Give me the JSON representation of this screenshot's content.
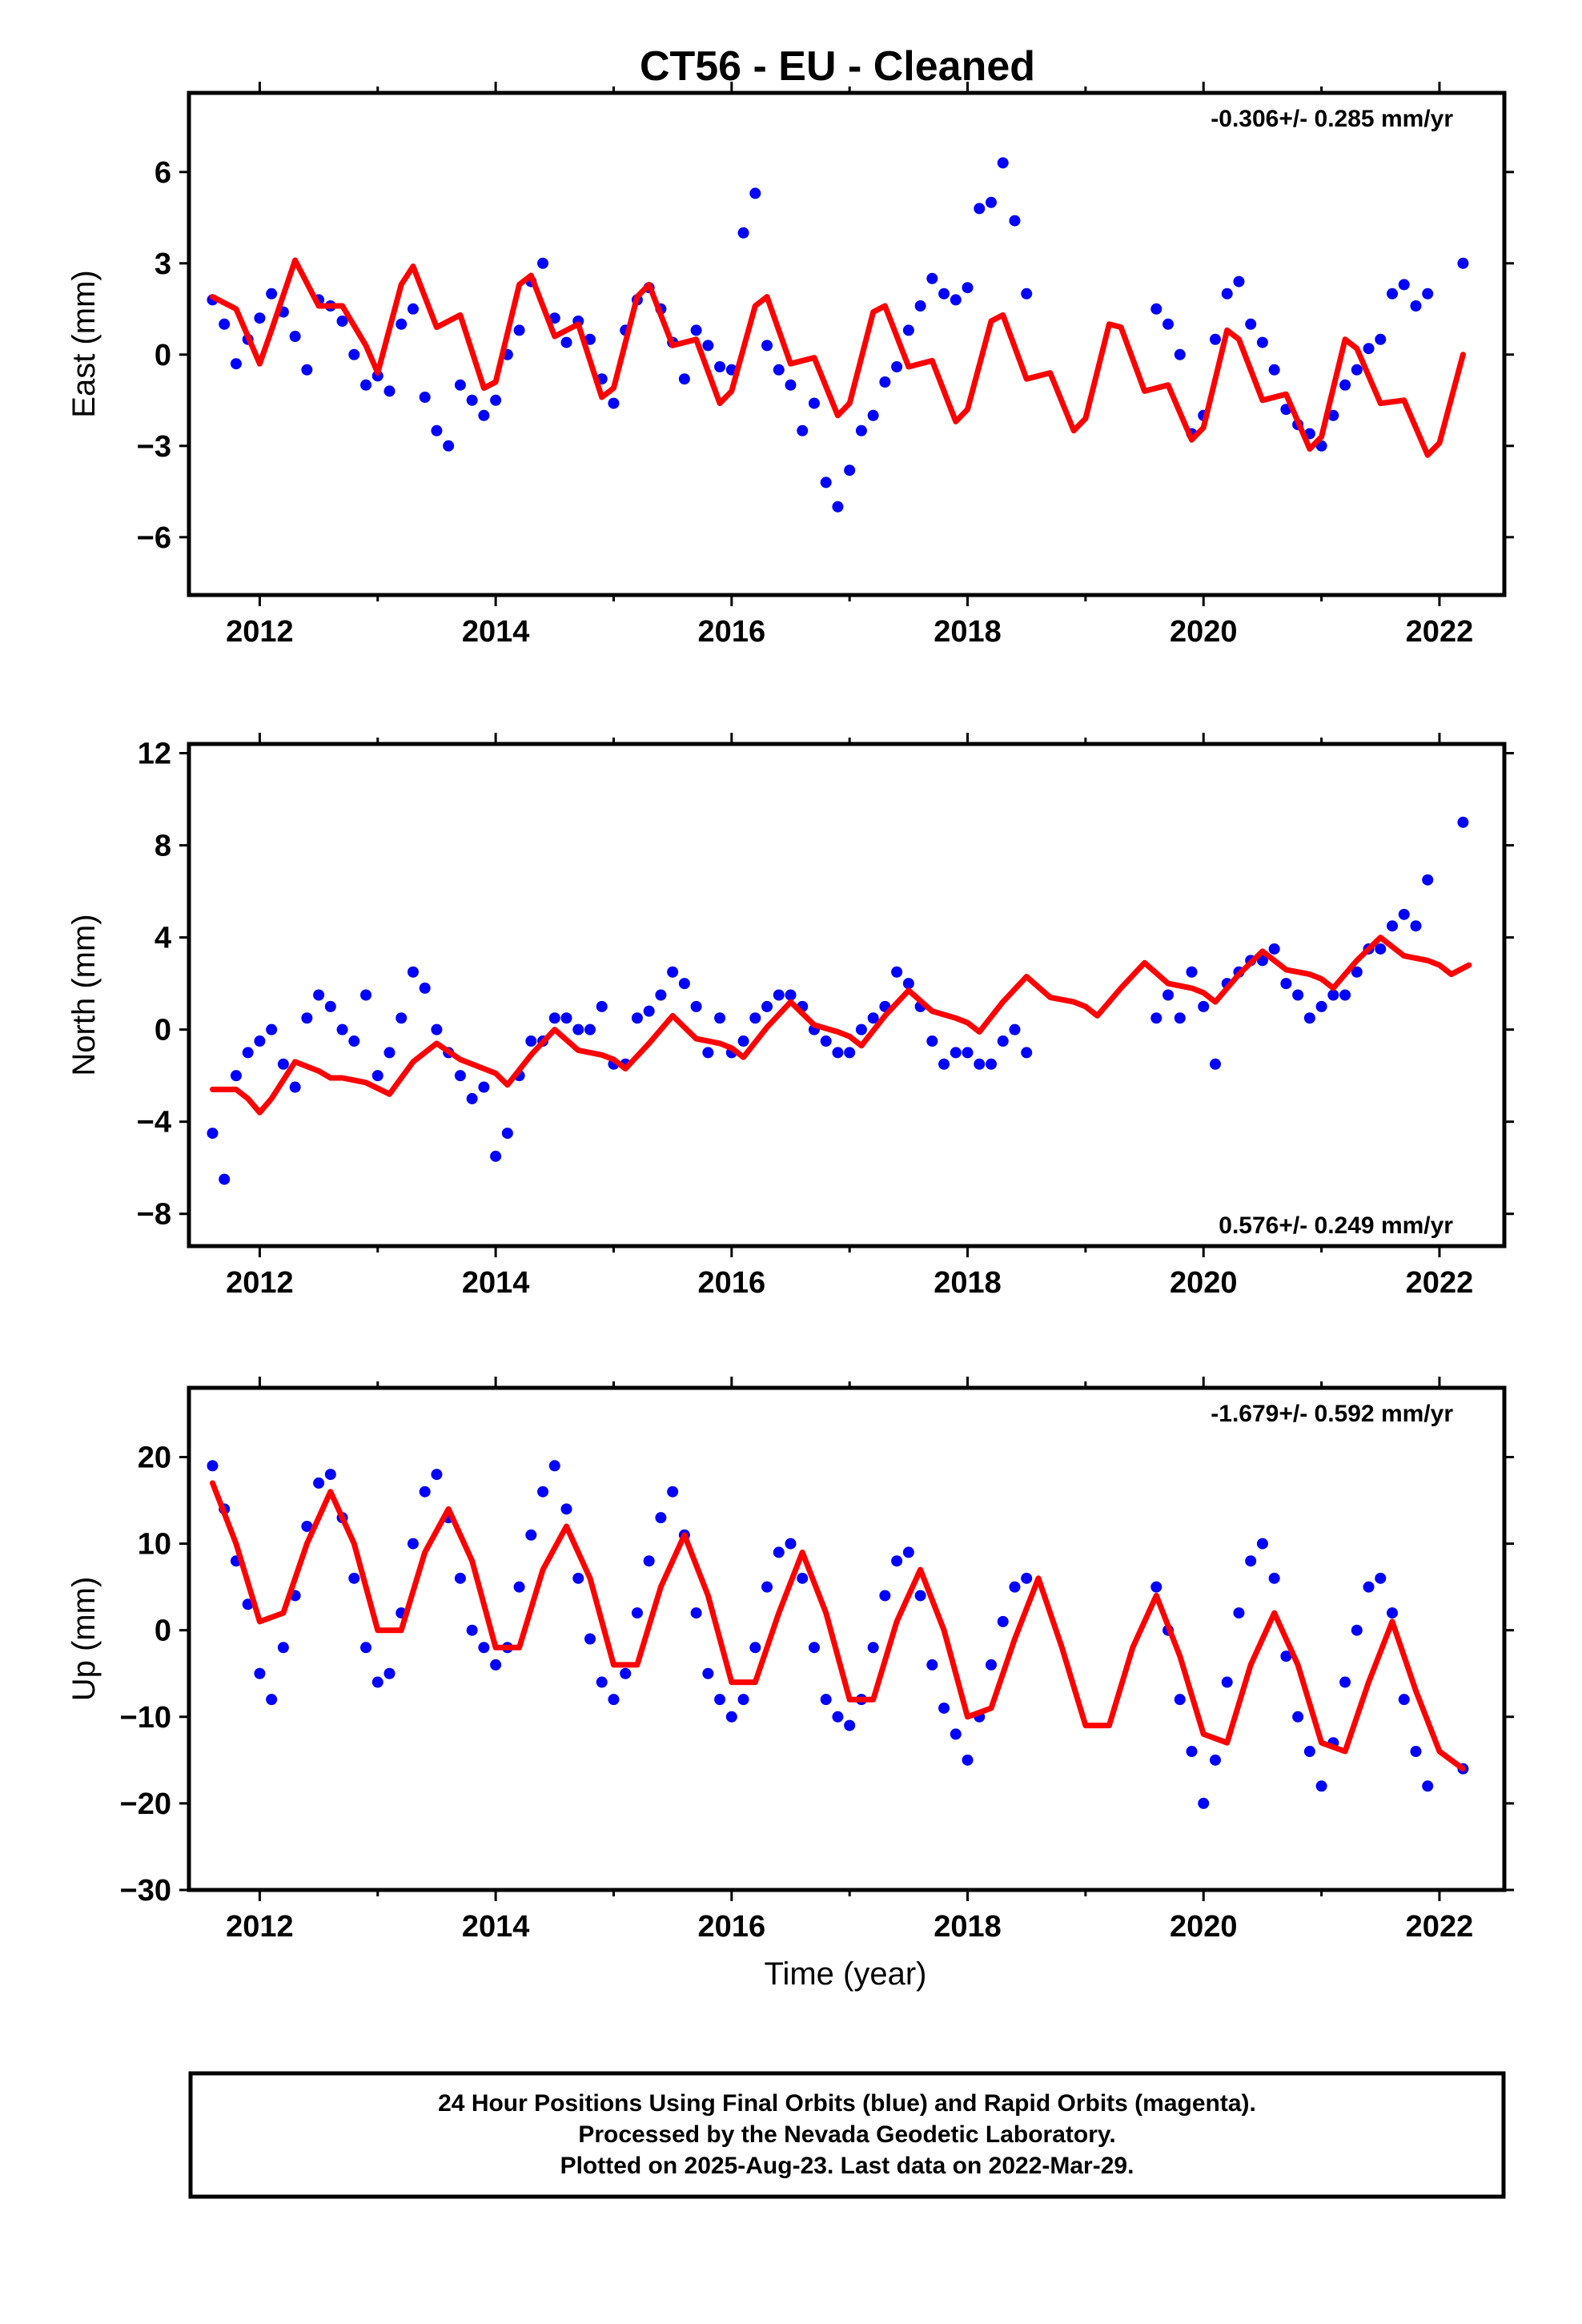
{
  "title": "CT56  - EU - Cleaned",
  "colors": {
    "points": "#0000ff",
    "model": "#ff0000",
    "frame": "#000000"
  },
  "xaxis": {
    "label": "Time (year)",
    "ticks": [
      2012,
      2014,
      2016,
      2018,
      2020,
      2022
    ],
    "range": [
      2011.4,
      2022.55
    ]
  },
  "footer": {
    "lines": [
      "24 Hour Positions Using Final Orbits (blue) and Rapid Orbits (magenta).",
      "Processed by the Nevada Geodetic Laboratory.",
      "Plotted on 2025-Aug-23. Last data on 2022-Mar-29."
    ]
  },
  "chart_data": [
    {
      "type": "scatter",
      "ylabel": "East (mm)",
      "rate": "-0.306+/- 0.285 mm/yr",
      "rate_position": "top-right",
      "ylim": [
        -7.9,
        8.6
      ],
      "yticks": [
        -6,
        -3,
        0,
        3,
        6
      ],
      "yticks_labels": [
        "−6",
        "−3",
        "0",
        "3",
        "6"
      ],
      "series": [
        {
          "kind": "points",
          "x": [
            2011.6,
            2011.7,
            2011.8,
            2011.9,
            2012.0,
            2012.1,
            2012.2,
            2012.3,
            2012.4,
            2012.5,
            2012.6,
            2012.7,
            2012.8,
            2012.9,
            2013.0,
            2013.1,
            2013.2,
            2013.3,
            2013.4,
            2013.5,
            2013.6,
            2013.7,
            2013.8,
            2013.9,
            2014.0,
            2014.1,
            2014.2,
            2014.3,
            2014.4,
            2014.5,
            2014.6,
            2014.7,
            2014.8,
            2014.9,
            2015.0,
            2015.1,
            2015.2,
            2015.3,
            2015.4,
            2015.5,
            2015.6,
            2015.7,
            2015.8,
            2015.9,
            2016.0,
            2016.1,
            2016.2,
            2016.3,
            2016.4,
            2016.5,
            2016.6,
            2016.7,
            2016.8,
            2016.9,
            2017.0,
            2017.1,
            2017.2,
            2017.3,
            2017.4,
            2017.5,
            2017.6,
            2017.7,
            2017.8,
            2017.9,
            2018.0,
            2018.1,
            2018.2,
            2018.3,
            2018.4,
            2018.5,
            2019.6,
            2019.7,
            2019.8,
            2019.9,
            2020.0,
            2020.1,
            2020.2,
            2020.3,
            2020.4,
            2020.5,
            2020.6,
            2020.7,
            2020.8,
            2020.9,
            2021.0,
            2021.1,
            2021.2,
            2021.3,
            2021.4,
            2021.5,
            2021.6,
            2021.7,
            2021.8,
            2021.9,
            2022.2
          ],
          "y": [
            1.8,
            1.0,
            -0.3,
            0.5,
            1.2,
            2.0,
            1.4,
            0.6,
            -0.5,
            1.8,
            1.6,
            1.1,
            0.0,
            -1.0,
            -0.7,
            -1.2,
            1.0,
            1.5,
            -1.4,
            -2.5,
            -3.0,
            -1.0,
            -1.5,
            -2.0,
            -1.5,
            0.0,
            0.8,
            2.4,
            3.0,
            1.2,
            0.4,
            1.1,
            0.5,
            -0.8,
            -1.6,
            0.8,
            1.8,
            2.2,
            1.5,
            0.4,
            -0.8,
            0.8,
            0.3,
            -0.4,
            -0.5,
            4.0,
            5.3,
            0.3,
            -0.5,
            -1.0,
            -2.5,
            -1.6,
            -4.2,
            -5.0,
            -3.8,
            -2.5,
            -2.0,
            -0.9,
            -0.4,
            0.8,
            1.6,
            2.5,
            2.0,
            1.8,
            2.2,
            4.8,
            5.0,
            6.3,
            4.4,
            2.0,
            1.5,
            1.0,
            0.0,
            -2.6,
            -2.0,
            0.5,
            2.0,
            2.4,
            1.0,
            0.4,
            -0.5,
            -1.8,
            -2.3,
            -2.6,
            -3.0,
            -2.0,
            -1.0,
            -0.5,
            0.2,
            0.5,
            2.0,
            2.3,
            1.6,
            2.0,
            3.0
          ]
        },
        {
          "kind": "model",
          "x": [
            2011.6,
            2011.8,
            2012.0,
            2012.1,
            2012.3,
            2012.5,
            2012.7,
            2012.9,
            2013.0,
            2013.2,
            2013.3,
            2013.5,
            2013.7,
            2013.9,
            2014.0,
            2014.2,
            2014.3,
            2014.5,
            2014.7,
            2014.9,
            2015.0,
            2015.2,
            2015.3,
            2015.5,
            2015.7,
            2015.9,
            2016.0,
            2016.2,
            2016.3,
            2016.5,
            2016.7,
            2016.9,
            2017.0,
            2017.2,
            2017.3,
            2017.5,
            2017.7,
            2017.9,
            2018.0,
            2018.2,
            2018.3,
            2018.5,
            2018.7,
            2018.9,
            2019.0,
            2019.2,
            2019.3,
            2019.5,
            2019.7,
            2019.9,
            2020.0,
            2020.2,
            2020.3,
            2020.5,
            2020.7,
            2020.9,
            2021.0,
            2021.2,
            2021.3,
            2021.5,
            2021.7,
            2021.9,
            2022.0,
            2022.2
          ],
          "y": [
            1.9,
            1.5,
            -0.3,
            0.8,
            3.1,
            1.6,
            1.6,
            0.3,
            -0.6,
            2.3,
            2.9,
            0.9,
            1.3,
            -1.1,
            -0.9,
            2.3,
            2.6,
            0.6,
            1.0,
            -1.4,
            -1.1,
            1.9,
            2.3,
            0.3,
            0.5,
            -1.6,
            -1.2,
            1.6,
            1.9,
            -0.3,
            -0.1,
            -2.0,
            -1.6,
            1.4,
            1.6,
            -0.4,
            -0.2,
            -2.2,
            -1.8,
            1.1,
            1.3,
            -0.8,
            -0.6,
            -2.5,
            -2.1,
            1.0,
            0.9,
            -1.2,
            -1.0,
            -2.8,
            -2.4,
            0.8,
            0.5,
            -1.5,
            -1.3,
            -3.1,
            -2.7,
            0.5,
            0.2,
            -1.6,
            -1.5,
            -3.3,
            -2.9,
            0.0
          ]
        }
      ]
    },
    {
      "type": "scatter",
      "ylabel": "North (mm)",
      "rate": "0.576+/- 0.249 mm/yr",
      "rate_position": "bottom-right",
      "ylim": [
        -9.4,
        12.4
      ],
      "yticks": [
        -8,
        -4,
        0,
        4,
        8,
        12
      ],
      "yticks_labels": [
        "−8",
        "−4",
        "0",
        "4",
        "8",
        "12"
      ],
      "series": [
        {
          "kind": "points",
          "x": [
            2011.6,
            2011.7,
            2011.8,
            2011.9,
            2012.0,
            2012.1,
            2012.2,
            2012.3,
            2012.4,
            2012.5,
            2012.6,
            2012.7,
            2012.8,
            2012.9,
            2013.0,
            2013.1,
            2013.2,
            2013.3,
            2013.4,
            2013.5,
            2013.6,
            2013.7,
            2013.8,
            2013.9,
            2014.0,
            2014.1,
            2014.2,
            2014.3,
            2014.4,
            2014.5,
            2014.6,
            2014.7,
            2014.8,
            2014.9,
            2015.0,
            2015.1,
            2015.2,
            2015.3,
            2015.4,
            2015.5,
            2015.6,
            2015.7,
            2015.8,
            2015.9,
            2016.0,
            2016.1,
            2016.2,
            2016.3,
            2016.4,
            2016.5,
            2016.6,
            2016.7,
            2016.8,
            2016.9,
            2017.0,
            2017.1,
            2017.2,
            2017.3,
            2017.4,
            2017.5,
            2017.6,
            2017.7,
            2017.8,
            2017.9,
            2018.0,
            2018.1,
            2018.2,
            2018.3,
            2018.4,
            2018.5,
            2019.6,
            2019.7,
            2019.8,
            2019.9,
            2020.0,
            2020.1,
            2020.2,
            2020.3,
            2020.4,
            2020.5,
            2020.6,
            2020.7,
            2020.8,
            2020.9,
            2021.0,
            2021.1,
            2021.2,
            2021.3,
            2021.4,
            2021.5,
            2021.6,
            2021.7,
            2021.8,
            2021.9,
            2022.2
          ],
          "y": [
            -4.5,
            -6.5,
            -2.0,
            -1.0,
            -0.5,
            0.0,
            -1.5,
            -2.5,
            0.5,
            1.5,
            1.0,
            0.0,
            -0.5,
            1.5,
            -2.0,
            -1.0,
            0.5,
            2.5,
            1.8,
            0.0,
            -1.0,
            -2.0,
            -3.0,
            -2.5,
            -5.5,
            -4.5,
            -2.0,
            -0.5,
            -0.5,
            0.5,
            0.5,
            0.0,
            0.0,
            1.0,
            -1.5,
            -1.5,
            0.5,
            0.8,
            1.5,
            2.5,
            2.0,
            1.0,
            -1.0,
            0.5,
            -1.0,
            -0.5,
            0.5,
            1.0,
            1.5,
            1.5,
            1.0,
            0.0,
            -0.5,
            -1.0,
            -1.0,
            0.0,
            0.5,
            1.0,
            2.5,
            2.0,
            1.0,
            -0.5,
            -1.5,
            -1.0,
            -1.0,
            -1.5,
            -1.5,
            -0.5,
            0.0,
            -1.0,
            0.5,
            1.5,
            0.5,
            2.5,
            1.0,
            -1.5,
            2.0,
            2.5,
            3.0,
            3.0,
            3.5,
            2.0,
            1.5,
            0.5,
            1.0,
            1.5,
            1.5,
            2.5,
            3.5,
            3.5,
            4.5,
            5.0,
            4.5,
            6.5,
            9.0
          ]
        },
        {
          "kind": "model",
          "x": [
            2011.6,
            2011.8,
            2011.9,
            2012.0,
            2012.1,
            2012.3,
            2012.5,
            2012.6,
            2012.7,
            2012.9,
            2013.1,
            2013.3,
            2013.5,
            2013.7,
            2013.9,
            2014.0,
            2014.1,
            2014.3,
            2014.5,
            2014.7,
            2014.9,
            2015.0,
            2015.1,
            2015.3,
            2015.5,
            2015.7,
            2015.9,
            2016.0,
            2016.1,
            2016.3,
            2016.5,
            2016.7,
            2016.9,
            2017.0,
            2017.1,
            2017.3,
            2017.5,
            2017.7,
            2017.9,
            2018.0,
            2018.1,
            2018.3,
            2018.5,
            2018.7,
            2018.9,
            2019.0,
            2019.1,
            2019.3,
            2019.5,
            2019.7,
            2019.9,
            2020.0,
            2020.1,
            2020.3,
            2020.5,
            2020.7,
            2020.9,
            2021.0,
            2021.1,
            2021.3,
            2021.5,
            2021.7,
            2021.9,
            2022.0,
            2022.1,
            2022.25
          ],
          "y": [
            -2.6,
            -2.6,
            -3.0,
            -3.6,
            -3.0,
            -1.4,
            -1.8,
            -2.1,
            -2.1,
            -2.3,
            -2.8,
            -1.4,
            -0.6,
            -1.3,
            -1.7,
            -1.9,
            -2.4,
            -1.1,
            0.0,
            -0.9,
            -1.1,
            -1.3,
            -1.7,
            -0.6,
            0.6,
            -0.4,
            -0.6,
            -0.8,
            -1.2,
            0.1,
            1.2,
            0.2,
            -0.1,
            -0.3,
            -0.7,
            0.6,
            1.7,
            0.8,
            0.5,
            0.3,
            -0.1,
            1.2,
            2.3,
            1.4,
            1.2,
            1.0,
            0.6,
            1.8,
            2.9,
            2.0,
            1.8,
            1.6,
            1.2,
            2.4,
            3.4,
            2.6,
            2.4,
            2.2,
            1.8,
            3.0,
            4.0,
            3.2,
            3.0,
            2.8,
            2.4,
            2.8
          ]
        }
      ]
    },
    {
      "type": "scatter",
      "ylabel": "Up (mm)",
      "rate": "-1.679+/- 0.592 mm/yr",
      "rate_position": "top-right",
      "ylim": [
        -30,
        28
      ],
      "yticks": [
        -30,
        -20,
        -10,
        0,
        10,
        20
      ],
      "yticks_labels": [
        "−30",
        "−20",
        "−10",
        "0",
        "10",
        "20"
      ],
      "series": [
        {
          "kind": "points",
          "x": [
            2011.6,
            2011.7,
            2011.8,
            2011.9,
            2012.0,
            2012.1,
            2012.2,
            2012.3,
            2012.4,
            2012.5,
            2012.6,
            2012.7,
            2012.8,
            2012.9,
            2013.0,
            2013.1,
            2013.2,
            2013.3,
            2013.4,
            2013.5,
            2013.6,
            2013.7,
            2013.8,
            2013.9,
            2014.0,
            2014.1,
            2014.2,
            2014.3,
            2014.4,
            2014.5,
            2014.6,
            2014.7,
            2014.8,
            2014.9,
            2015.0,
            2015.1,
            2015.2,
            2015.3,
            2015.4,
            2015.5,
            2015.6,
            2015.7,
            2015.8,
            2015.9,
            2016.0,
            2016.1,
            2016.2,
            2016.3,
            2016.4,
            2016.5,
            2016.6,
            2016.7,
            2016.8,
            2016.9,
            2017.0,
            2017.1,
            2017.2,
            2017.3,
            2017.4,
            2017.5,
            2017.6,
            2017.7,
            2017.8,
            2017.9,
            2018.0,
            2018.1,
            2018.2,
            2018.3,
            2018.4,
            2018.5,
            2019.6,
            2019.7,
            2019.8,
            2019.9,
            2020.0,
            2020.1,
            2020.2,
            2020.3,
            2020.4,
            2020.5,
            2020.6,
            2020.7,
            2020.8,
            2020.9,
            2021.0,
            2021.1,
            2021.2,
            2021.3,
            2021.4,
            2021.5,
            2021.6,
            2021.7,
            2021.8,
            2021.9,
            2022.2
          ],
          "y": [
            19,
            14,
            8,
            3,
            -5,
            -8,
            -2,
            4,
            12,
            17,
            18,
            13,
            6,
            -2,
            -6,
            -5,
            2,
            10,
            16,
            18,
            13,
            6,
            0,
            -2,
            -4,
            -2,
            5,
            11,
            16,
            19,
            14,
            6,
            -1,
            -6,
            -8,
            -5,
            2,
            8,
            13,
            16,
            11,
            2,
            -5,
            -8,
            -10,
            -8,
            -2,
            5,
            9,
            10,
            6,
            -2,
            -8,
            -10,
            -11,
            -8,
            -2,
            4,
            8,
            9,
            4,
            -4,
            -9,
            -12,
            -15,
            -10,
            -4,
            1,
            5,
            6,
            5,
            0,
            -8,
            -14,
            -20,
            -15,
            -6,
            2,
            8,
            10,
            6,
            -3,
            -10,
            -14,
            -18,
            -13,
            -6,
            0,
            5,
            6,
            2,
            -8,
            -14,
            -18,
            -16
          ]
        },
        {
          "kind": "model",
          "x": [
            2011.6,
            2011.8,
            2012.0,
            2012.2,
            2012.4,
            2012.6,
            2012.8,
            2013.0,
            2013.2,
            2013.4,
            2013.6,
            2013.8,
            2014.0,
            2014.2,
            2014.4,
            2014.6,
            2014.8,
            2015.0,
            2015.2,
            2015.4,
            2015.6,
            2015.8,
            2016.0,
            2016.2,
            2016.4,
            2016.6,
            2016.8,
            2017.0,
            2017.2,
            2017.4,
            2017.6,
            2017.8,
            2018.0,
            2018.2,
            2018.4,
            2018.6,
            2018.8,
            2019.0,
            2019.2,
            2019.4,
            2019.6,
            2019.8,
            2020.0,
            2020.2,
            2020.4,
            2020.6,
            2020.8,
            2021.0,
            2021.2,
            2021.4,
            2021.6,
            2021.8,
            2022.0,
            2022.2
          ],
          "y": [
            17,
            10,
            1,
            2,
            10,
            16,
            10,
            0,
            0,
            9,
            14,
            8,
            -2,
            -2,
            7,
            12,
            6,
            -4,
            -4,
            5,
            11,
            4,
            -6,
            -6,
            2,
            9,
            2,
            -8,
            -8,
            1,
            7,
            0,
            -10,
            -9,
            -1,
            6,
            -2,
            -11,
            -11,
            -2,
            4,
            -3,
            -12,
            -13,
            -4,
            2,
            -4,
            -13,
            -14,
            -6,
            1,
            -7,
            -14,
            -16
          ]
        }
      ]
    }
  ]
}
